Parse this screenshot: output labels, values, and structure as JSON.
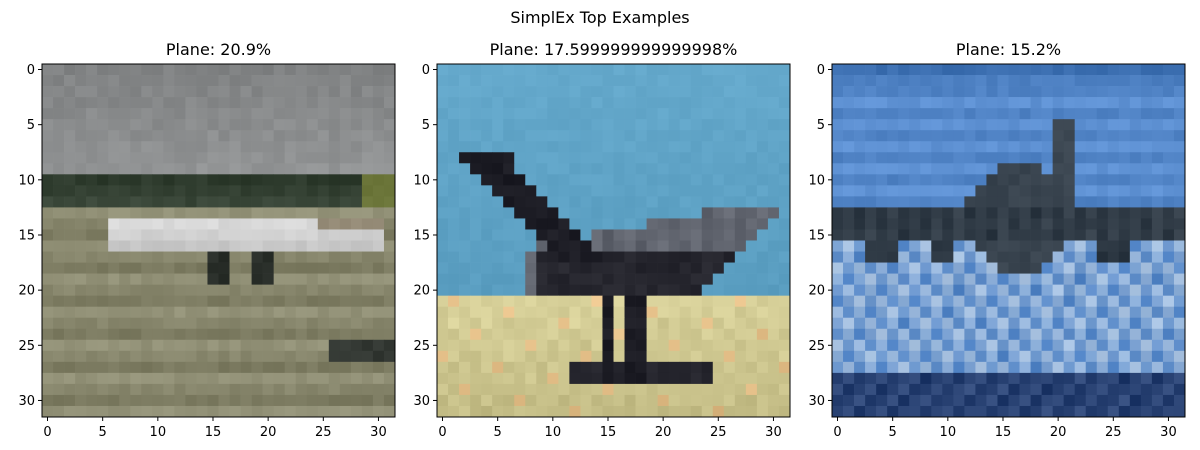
{
  "figure": {
    "suptitle": "SimplEx Top Examples"
  },
  "chart_data": [
    {
      "type": "image",
      "title": "Plane: 20.9%",
      "image_size": [
        32,
        32
      ],
      "xlim": [
        -0.5,
        31.5
      ],
      "ylim": [
        31.5,
        -0.5
      ],
      "xticks": [
        0,
        5,
        10,
        15,
        20,
        25,
        30
      ],
      "yticks": [
        0,
        5,
        10,
        15,
        20,
        25,
        30
      ],
      "scene": "runway",
      "colors": {
        "sky": "#8a8c8d",
        "ground": "#8d8c72",
        "fuselage": "#d8d8d8",
        "trees": "#2d3a2c"
      }
    },
    {
      "type": "image",
      "title": "Plane: 17.599999999999998%",
      "image_size": [
        32,
        32
      ],
      "xlim": [
        -0.5,
        31.5
      ],
      "ylim": [
        31.5,
        -0.5
      ],
      "xticks": [
        0,
        5,
        10,
        15,
        20,
        25,
        30
      ],
      "yticks": [
        0,
        5,
        10,
        15,
        20,
        25,
        30
      ],
      "scene": "jet-on-sand",
      "colors": {
        "sky": "#65a9cc",
        "ground": "#d8d19a",
        "fuselage": "#5a5e68",
        "trees": "#1c1c24"
      }
    },
    {
      "type": "image",
      "title": "Plane: 15.2%",
      "image_size": [
        32,
        32
      ],
      "xlim": [
        -0.5,
        31.5
      ],
      "ylim": [
        31.5,
        -0.5
      ],
      "xticks": [
        0,
        5,
        10,
        15,
        20,
        25,
        30
      ],
      "yticks": [
        0,
        5,
        10,
        15,
        20,
        25,
        30
      ],
      "scene": "plane-over-water",
      "colors": {
        "sky": "#4f82c4",
        "ground": "#b7cde6",
        "fuselage": "#2a3540",
        "trees": "#1c3566"
      }
    }
  ]
}
